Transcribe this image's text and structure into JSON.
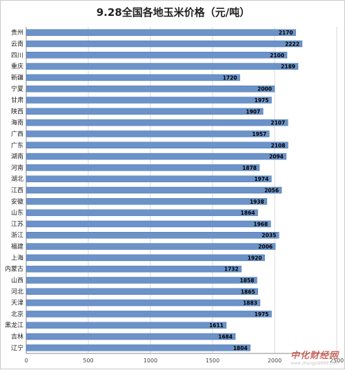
{
  "chart_data": {
    "type": "bar",
    "orientation": "horizontal",
    "title": "9.28全国各地玉米价格（元/吨）",
    "xlabel": "",
    "ylabel": "",
    "xlim": [
      0,
      2500
    ],
    "x_ticks": [
      0,
      500,
      1000,
      1500,
      2000,
      2500
    ],
    "grid": true,
    "legend": "none",
    "bar_color": "#6b93c9",
    "categories": [
      "贵州",
      "云南",
      "四川",
      "重庆",
      "新疆",
      "宁夏",
      "甘肃",
      "陕西",
      "海南",
      "广西",
      "广东",
      "湖南",
      "河南",
      "湖北",
      "江西",
      "安徽",
      "山东",
      "江苏",
      "浙江",
      "福建",
      "上海",
      "内蒙古",
      "山西",
      "河北",
      "天津",
      "北京",
      "黑龙江",
      "吉林",
      "辽宁"
    ],
    "values": [
      2170,
      2222,
      2100,
      2189,
      1720,
      2000,
      1975,
      1907,
      2107,
      1957,
      2108,
      2094,
      1878,
      1974,
      2056,
      1938,
      1864,
      1968,
      2035,
      2006,
      1920,
      1732,
      1858,
      1865,
      1883,
      1975,
      1611,
      1684,
      1804
    ]
  },
  "watermark": {
    "text": "中化财经网",
    "url": "www.zhongyi9999.com"
  }
}
